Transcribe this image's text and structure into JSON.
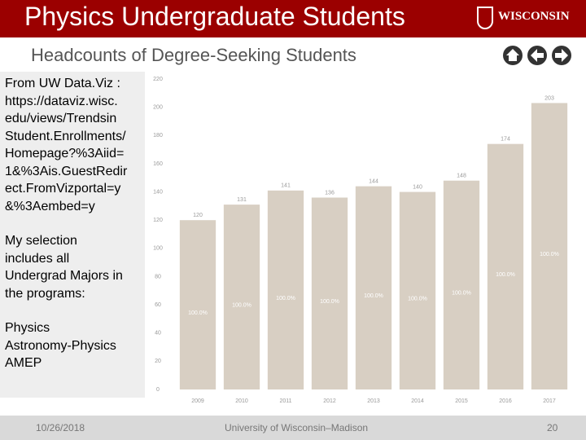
{
  "header": {
    "title": "Physics Undergraduate Students",
    "logo": "WISCONSIN",
    "subtitle": "Headcounts of Degree-Seeking Students"
  },
  "sidebar": {
    "source": "From UW Data.Viz :",
    "url_lines": [
      "https://dataviz.wisc.",
      "edu/views/Trendsin",
      "Student.Enrollments/",
      "Homepage?%3Aiid=",
      "1&%3Ais.GuestRedir",
      "ect.FromVizportal=y",
      "&%3Aembed=y"
    ],
    "selection_lines": [
      "My selection",
      "includes all",
      "Undergrad Majors in",
      "the programs:"
    ],
    "programs": [
      "Physics",
      "Astronomy-Physics",
      "AMEP"
    ]
  },
  "footer": {
    "date": "10/26/2018",
    "org": "University of Wisconsin–Madison",
    "page": "20"
  },
  "chart_data": {
    "type": "bar",
    "categories": [
      "2009",
      "2010",
      "2011",
      "2012",
      "2013",
      "2014",
      "2015",
      "2016",
      "2017"
    ],
    "values": [
      120,
      131,
      141,
      136,
      144,
      140,
      148,
      174,
      203
    ],
    "inner_labels": [
      "100.0%",
      "100.0%",
      "100.0%",
      "100.0%",
      "100.0%",
      "100.0%",
      "100.0%",
      "100.0%",
      "100.0%"
    ],
    "color": "#d8cfc3",
    "ylim": [
      0,
      220
    ],
    "yticks": [
      0,
      20,
      40,
      60,
      80,
      100,
      120,
      140,
      160,
      180,
      200,
      220
    ]
  }
}
